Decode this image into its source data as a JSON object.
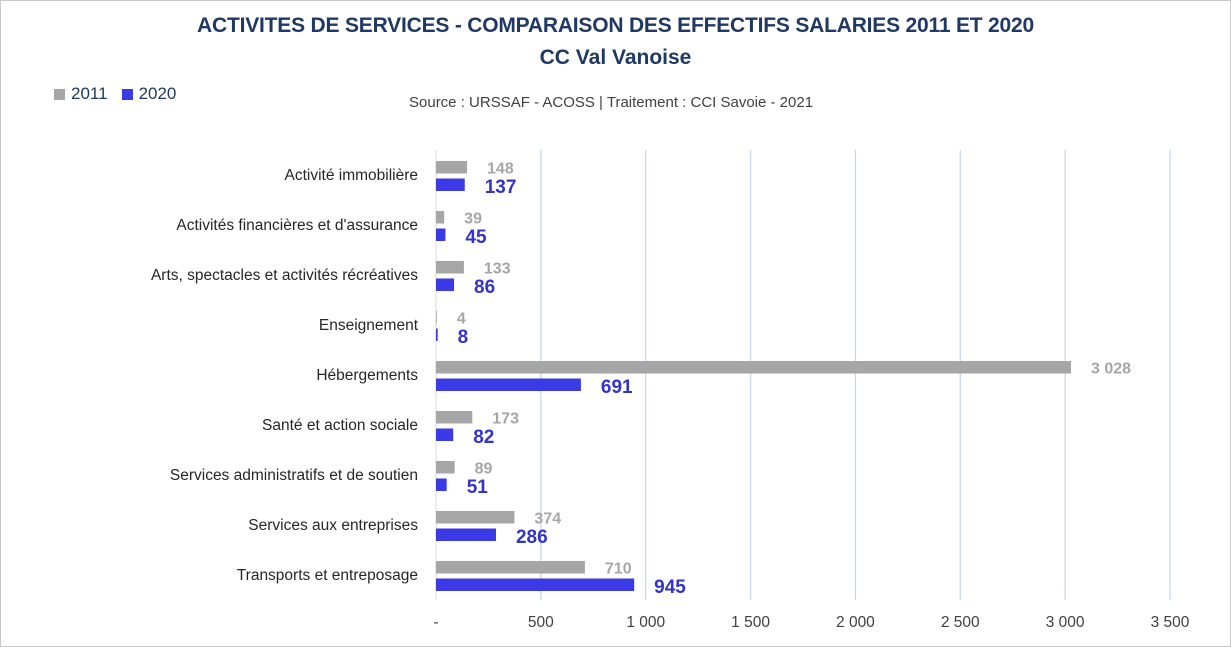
{
  "chart_data": {
    "type": "bar",
    "orientation": "horizontal",
    "title": "ACTIVITES DE SERVICES - COMPARAISON DES EFFECTIFS SALARIES 2011 ET 2020",
    "subtitle": "CC Val Vanoise",
    "source": "Source  : URSSAF - ACOSS  |  Traitement : CCI Savoie - 2021",
    "categories": [
      "Activité immobilière",
      "Activités financières et d'assurance",
      "Arts, spectacles et activités récréatives",
      "Enseignement",
      "Hébergements",
      "Santé et action sociale",
      "Services administratifs et de soutien",
      "Services aux entreprises",
      "Transports et entreposage"
    ],
    "series": [
      {
        "name": "2011",
        "color": "#a6a6a6",
        "values": [
          148,
          39,
          133,
          4,
          3028,
          173,
          89,
          374,
          710
        ],
        "labels": [
          "148",
          "39",
          "133",
          "4",
          "3 028",
          "173",
          "89",
          "374",
          "710"
        ]
      },
      {
        "name": "2020",
        "color": "#3a3ae6",
        "values": [
          137,
          45,
          86,
          8,
          691,
          82,
          51,
          286,
          945
        ],
        "labels": [
          "137",
          "45",
          "86",
          "8",
          "691",
          "82",
          "51",
          "286",
          "945"
        ]
      }
    ],
    "xlim": [
      0,
      3500
    ],
    "xticks": [
      0,
      500,
      1000,
      1500,
      2000,
      2500,
      3000,
      3500
    ],
    "xtick_labels": [
      "-",
      "500",
      "1 000",
      "1 500",
      "2 000",
      "2 500",
      "3 000",
      "3 500"
    ],
    "grid": true,
    "legend_position": "top-left"
  }
}
